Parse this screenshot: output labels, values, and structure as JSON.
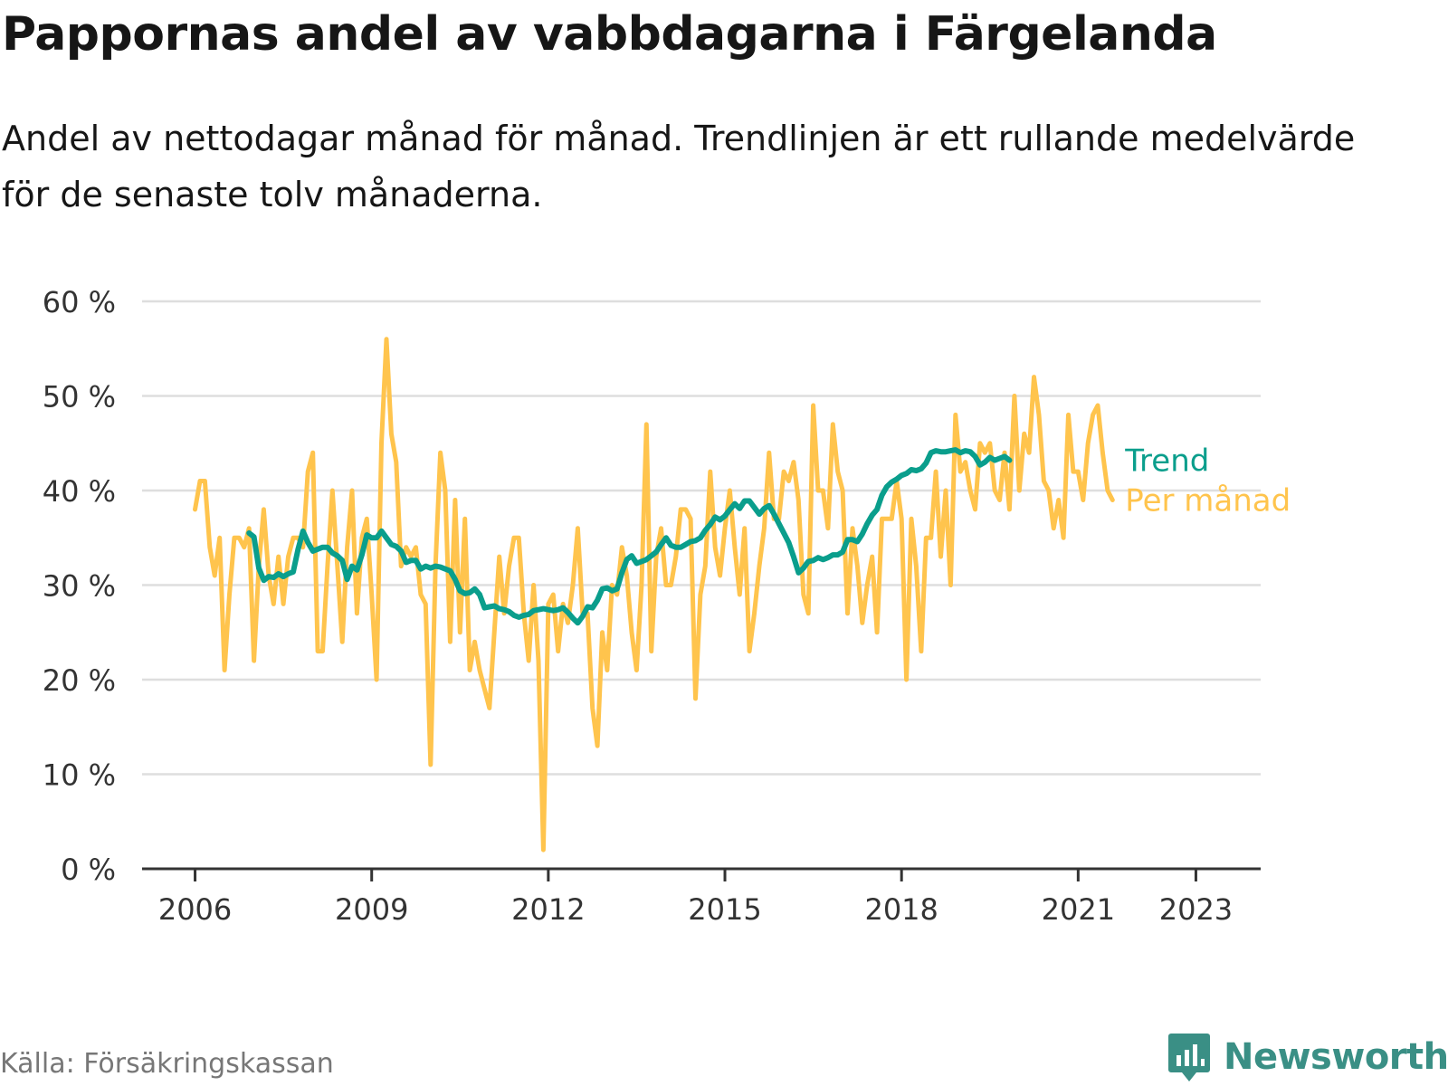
{
  "title": "Pappornas andel av vabbdagarna i Färgelanda",
  "subtitle": "Andel av nettodagar månad för månad. Trendlinjen är ett rullande medelvärde för de senaste tolv månaderna.",
  "source": "Källa: Försäkringskassan",
  "brand": {
    "name": "Newsworthy",
    "icon": "newsworthy-logo-icon",
    "color": "#3a8f85"
  },
  "chart_data": {
    "type": "line",
    "title": "Pappornas andel av vabbdagarna i Färgelanda",
    "ylim": [
      0,
      60
    ],
    "y_ticks": [
      0,
      10,
      20,
      30,
      40,
      50,
      60
    ],
    "y_tick_labels": [
      "0 %",
      "10 %",
      "20 %",
      "30 %",
      "40 %",
      "50 %",
      "60 %"
    ],
    "x_ticks": [
      2006,
      2009,
      2012,
      2015,
      2018,
      2021,
      2023
    ],
    "x_tick_labels": [
      "2006",
      "2009",
      "2012",
      "2015",
      "2018",
      "2021",
      "2023"
    ],
    "xlim": [
      2005.1,
      2024.1
    ],
    "grid": true,
    "legend": "inline-right",
    "series": [
      {
        "name": "Per månad",
        "color": "#ffc44d",
        "start": 2006.0,
        "step_months": 1,
        "values": [
          38,
          41,
          41,
          34,
          31,
          35,
          21,
          29,
          35,
          35,
          34,
          36,
          22,
          32,
          38,
          31,
          28,
          33,
          28,
          33,
          35,
          35,
          34,
          42,
          44,
          23,
          23,
          32,
          40,
          32,
          24,
          34,
          40,
          27,
          35,
          37,
          29,
          20,
          45,
          56,
          46,
          43,
          32,
          34,
          33,
          34,
          29,
          28,
          11,
          32,
          44,
          40,
          24,
          39,
          25,
          37,
          21,
          24,
          21,
          19,
          17,
          25,
          33,
          27,
          32,
          35,
          35,
          27,
          22,
          30,
          22,
          2,
          28,
          29,
          23,
          28,
          26,
          30,
          36,
          27,
          27,
          17,
          13,
          25,
          21,
          30,
          29,
          34,
          31,
          25,
          21,
          30,
          47,
          23,
          33,
          36,
          30,
          30,
          33,
          38,
          38,
          37,
          18,
          29,
          32,
          42,
          34,
          31,
          36,
          40,
          34,
          29,
          36,
          23,
          27,
          32,
          36,
          44,
          37,
          37,
          42,
          41,
          43,
          39,
          29,
          27,
          49,
          40,
          40,
          36,
          47,
          42,
          40,
          27,
          36,
          32,
          26,
          30,
          33,
          25,
          37,
          37,
          37,
          41,
          37,
          20,
          37,
          32,
          23,
          35,
          35,
          42,
          33,
          40,
          30,
          48,
          42,
          43,
          40,
          38,
          45,
          44,
          45,
          40,
          39,
          44,
          38,
          50,
          40,
          46,
          44,
          52,
          48,
          41,
          40,
          36,
          39,
          35,
          48,
          42,
          42,
          39,
          45,
          48,
          49,
          44,
          40,
          39
        ]
      },
      {
        "name": "Trend",
        "color": "#0a9e8c",
        "start": 2006.917,
        "step_months": 1,
        "values": [
          35.5,
          35.1,
          31.8,
          30.5,
          30.9,
          30.8,
          31.2,
          30.9,
          31.2,
          31.4,
          33.8,
          35.7,
          34.5,
          33.6,
          33.8,
          34.0,
          34.0,
          33.4,
          33.1,
          32.6,
          30.6,
          32.0,
          31.6,
          33.2,
          35.3,
          35.0,
          35.0,
          35.7,
          35.0,
          34.3,
          34.1,
          33.6,
          32.4,
          32.6,
          32.6,
          31.7,
          32.0,
          31.8,
          32.0,
          31.9,
          31.7,
          31.5,
          30.6,
          29.4,
          29.1,
          29.2,
          29.6,
          29.0,
          27.6,
          27.7,
          27.8,
          27.5,
          27.4,
          27.2,
          26.8,
          26.6,
          26.8,
          26.9,
          27.3,
          27.4,
          27.5,
          27.4,
          27.3,
          27.4,
          27.6,
          27.1,
          26.5,
          26.0,
          26.7,
          27.7,
          27.6,
          28.4,
          29.6,
          29.7,
          29.4,
          29.6,
          31.3,
          32.7,
          33.1,
          32.3,
          32.5,
          32.7,
          33.1,
          33.5,
          34.3,
          35.0,
          34.2,
          34.0,
          34.0,
          34.3,
          34.6,
          34.7,
          35.0,
          35.8,
          36.4,
          37.2,
          36.9,
          37.3,
          38.0,
          38.6,
          38.1,
          38.9,
          38.9,
          38.2,
          37.5,
          38.1,
          38.4,
          37.5,
          36.5,
          35.5,
          34.5,
          33.0,
          31.3,
          31.8,
          32.5,
          32.6,
          32.9,
          32.7,
          32.9,
          33.2,
          33.2,
          33.5,
          34.8,
          34.8,
          34.6,
          35.4,
          36.5,
          37.4,
          38.0,
          39.5,
          40.4,
          40.9,
          41.2,
          41.6,
          41.8,
          42.2,
          42.1,
          42.3,
          42.9,
          44.0,
          44.2,
          44.1,
          44.1,
          44.2,
          44.3,
          44.0,
          44.2,
          44.1,
          43.6,
          42.7,
          43.0,
          43.5,
          43.2,
          43.4,
          43.6,
          43.2
        ]
      }
    ]
  }
}
